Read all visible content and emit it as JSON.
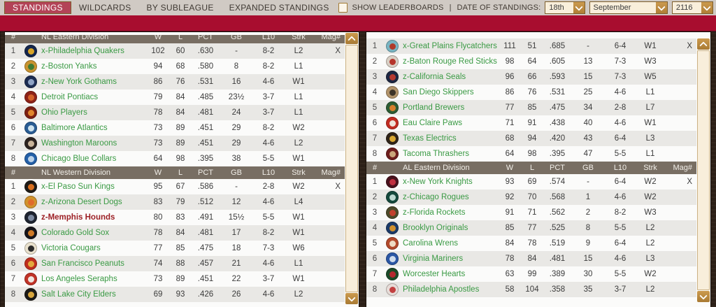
{
  "tabbar": {
    "tabs": [
      {
        "label": "STANDINGS",
        "selected": true
      },
      {
        "label": "WILDCARDS",
        "selected": false
      },
      {
        "label": "BY SUBLEAGUE",
        "selected": false
      },
      {
        "label": "EXPANDED STANDINGS",
        "selected": false
      }
    ]
  },
  "controls": {
    "show_leaderboards_label": "SHOW LEADERBOARDS",
    "checkbox_checked": false,
    "separator": "|",
    "date_label": "DATE OF STANDINGS:",
    "date_selects": [
      {
        "value": "18th"
      },
      {
        "value": "September"
      },
      {
        "value": "2116"
      }
    ]
  },
  "colors": {
    "accent_ribbon": "#a80d2f",
    "tab_selected": "#b34357",
    "division_header_bg": "#786e63",
    "team_name_green": "#3a9a44",
    "user_team_red": "#9c1f24",
    "scroll_button_orange": "#b07f36"
  },
  "table_headers": {
    "rank": "#",
    "w": "W",
    "l": "L",
    "pct": "PCT",
    "gb": "GB",
    "l10": "L10",
    "strk": "Strk",
    "mag": "Mag#"
  },
  "panels": [
    {
      "divisions": [
        {
          "name": "NL Eastern Division",
          "header_visible": true,
          "header_clipped": true,
          "teams": [
            {
              "rank": "1",
              "name": "x-Philadelphia Quakers",
              "w": "102",
              "l": "60",
              "pct": ".630",
              "gb": "-",
              "l10": "8-2",
              "strk": "L2",
              "mag": "X",
              "logo": [
                "#14264d",
                "#d9a527"
              ]
            },
            {
              "rank": "2",
              "name": "z-Boston Yanks",
              "w": "94",
              "l": "68",
              "pct": ".580",
              "gb": "8",
              "l10": "8-2",
              "strk": "L1",
              "mag": "",
              "logo": [
                "#c9932f",
                "#3f7a33"
              ]
            },
            {
              "rank": "3",
              "name": "z-New York Gothams",
              "w": "86",
              "l": "76",
              "pct": ".531",
              "gb": "16",
              "l10": "4-6",
              "strk": "W1",
              "mag": "",
              "logo": [
                "#1c2c52",
                "#8fa3c4"
              ]
            },
            {
              "rank": "4",
              "name": "Detroit Pontiacs",
              "w": "79",
              "l": "84",
              "pct": ".485",
              "gb": "23½",
              "l10": "3-7",
              "strk": "L1",
              "mag": "",
              "logo": [
                "#8e2318",
                "#d4622a"
              ]
            },
            {
              "rank": "5",
              "name": "Ohio Players",
              "w": "78",
              "l": "84",
              "pct": ".481",
              "gb": "24",
              "l10": "3-7",
              "strk": "L1",
              "mag": "",
              "logo": [
                "#7c1f12",
                "#e0862c"
              ]
            },
            {
              "rank": "6",
              "name": "Baltimore Atlantics",
              "w": "73",
              "l": "89",
              "pct": ".451",
              "gb": "29",
              "l10": "8-2",
              "strk": "W2",
              "mag": "",
              "logo": [
                "#2a5d94",
                "#cfe3ee"
              ]
            },
            {
              "rank": "7",
              "name": "Washington Maroons",
              "w": "73",
              "l": "89",
              "pct": ".451",
              "gb": "29",
              "l10": "4-6",
              "strk": "L2",
              "mag": "",
              "logo": [
                "#2c2320",
                "#c9b49a"
              ]
            },
            {
              "rank": "8",
              "name": "Chicago Blue Collars",
              "w": "64",
              "l": "98",
              "pct": ".395",
              "gb": "38",
              "l10": "5-5",
              "strk": "W1",
              "mag": "",
              "logo": [
                "#2460a8",
                "#bcd2e8"
              ]
            }
          ]
        },
        {
          "name": "NL Western Division",
          "header_visible": true,
          "header_clipped": false,
          "teams": [
            {
              "rank": "1",
              "name": "x-El Paso Sun Kings",
              "w": "95",
              "l": "67",
              "pct": ".586",
              "gb": "-",
              "l10": "2-8",
              "strk": "W2",
              "mag": "X",
              "logo": [
                "#1f1b16",
                "#d96f1f"
              ]
            },
            {
              "rank": "2",
              "name": "z-Arizona Desert Dogs",
              "w": "83",
              "l": "79",
              "pct": ".512",
              "gb": "12",
              "l10": "4-6",
              "strk": "L4",
              "mag": "",
              "logo": [
                "#d1922c",
                "#e06a2a"
              ]
            },
            {
              "rank": "3",
              "name": "z-Memphis Hounds",
              "w": "80",
              "l": "83",
              "pct": ".491",
              "gb": "15½",
              "l10": "5-5",
              "strk": "W1",
              "mag": "",
              "logo": [
                "#1e2430",
                "#7d8aa0"
              ],
              "user_team": true
            },
            {
              "rank": "4",
              "name": "Colorado Gold Sox",
              "w": "78",
              "l": "84",
              "pct": ".481",
              "gb": "17",
              "l10": "8-2",
              "strk": "W1",
              "mag": "",
              "logo": [
                "#17151a",
                "#cf7a26"
              ]
            },
            {
              "rank": "5",
              "name": "Victoria Cougars",
              "w": "77",
              "l": "85",
              "pct": ".475",
              "gb": "18",
              "l10": "7-3",
              "strk": "W6",
              "mag": "",
              "logo": [
                "#e9e1cd",
                "#2b2b2b"
              ]
            },
            {
              "rank": "6",
              "name": "San Francisco Peanuts",
              "w": "74",
              "l": "88",
              "pct": ".457",
              "gb": "21",
              "l10": "4-6",
              "strk": "L1",
              "mag": "",
              "logo": [
                "#bf2d1d",
                "#e3a93c"
              ]
            },
            {
              "rank": "7",
              "name": "Los Angeles Seraphs",
              "w": "73",
              "l": "89",
              "pct": ".451",
              "gb": "22",
              "l10": "3-7",
              "strk": "W1",
              "mag": "",
              "logo": [
                "#c23428",
                "#efe6e0"
              ]
            },
            {
              "rank": "8",
              "name": "Salt Lake City Elders",
              "w": "69",
              "l": "93",
              "pct": ".426",
              "gb": "26",
              "l10": "4-6",
              "strk": "L2",
              "mag": "",
              "logo": [
                "#1c1a17",
                "#d8a63c"
              ]
            }
          ]
        }
      ]
    },
    {
      "divisions": [
        {
          "name": "",
          "header_visible": false,
          "header_clipped": false,
          "teams": [
            {
              "rank": "1",
              "name": "x-Great Plains Flycatchers",
              "w": "111",
              "l": "51",
              "pct": ".685",
              "gb": "-",
              "l10": "6-4",
              "strk": "W1",
              "mag": "X",
              "logo": [
                "#79b4c2",
                "#b03a2a"
              ]
            },
            {
              "rank": "2",
              "name": "z-Baton Rouge Red Sticks",
              "w": "98",
              "l": "64",
              "pct": ".605",
              "gb": "13",
              "l10": "7-3",
              "strk": "W3",
              "mag": "",
              "logo": [
                "#d8cfc4",
                "#b5342a"
              ]
            },
            {
              "rank": "3",
              "name": "z-California Seals",
              "w": "96",
              "l": "66",
              "pct": ".593",
              "gb": "15",
              "l10": "7-3",
              "strk": "W5",
              "mag": "",
              "logo": [
                "#1d2742",
                "#b5382f"
              ]
            },
            {
              "rank": "4",
              "name": "San Diego Skippers",
              "w": "86",
              "l": "76",
              "pct": ".531",
              "gb": "25",
              "l10": "4-6",
              "strk": "L1",
              "mag": "",
              "logo": [
                "#b1936a",
                "#3c3327"
              ]
            },
            {
              "rank": "5",
              "name": "Portland Brewers",
              "w": "77",
              "l": "85",
              "pct": ".475",
              "gb": "34",
              "l10": "2-8",
              "strk": "L7",
              "mag": "",
              "logo": [
                "#2c5c33",
                "#d77f2c"
              ]
            },
            {
              "rank": "6",
              "name": "Eau Claire Paws",
              "w": "71",
              "l": "91",
              "pct": ".438",
              "gb": "40",
              "l10": "4-6",
              "strk": "W1",
              "mag": "",
              "logo": [
                "#c22d22",
                "#efe4da"
              ]
            },
            {
              "rank": "7",
              "name": "Texas Electrics",
              "w": "68",
              "l": "94",
              "pct": ".420",
              "gb": "43",
              "l10": "6-4",
              "strk": "L3",
              "mag": "",
              "logo": [
                "#2f2418",
                "#d9a832"
              ]
            },
            {
              "rank": "8",
              "name": "Tacoma Thrashers",
              "w": "64",
              "l": "98",
              "pct": ".395",
              "gb": "47",
              "l10": "5-5",
              "strk": "L1",
              "mag": "",
              "logo": [
                "#6e1d1c",
                "#caa57a"
              ]
            }
          ]
        },
        {
          "name": "AL Eastern Division",
          "header_visible": true,
          "header_clipped": false,
          "teams": [
            {
              "rank": "1",
              "name": "x-New York Knights",
              "w": "93",
              "l": "69",
              "pct": ".574",
              "gb": "-",
              "l10": "6-4",
              "strk": "W2",
              "mag": "X",
              "logo": [
                "#49121d",
                "#c03040"
              ]
            },
            {
              "rank": "2",
              "name": "z-Chicago Rogues",
              "w": "92",
              "l": "70",
              "pct": ".568",
              "gb": "1",
              "l10": "4-6",
              "strk": "W2",
              "mag": "",
              "logo": [
                "#14493c",
                "#bcd8d0"
              ]
            },
            {
              "rank": "3",
              "name": "z-Florida Rockets",
              "w": "91",
              "l": "71",
              "pct": ".562",
              "gb": "2",
              "l10": "8-2",
              "strk": "W3",
              "mag": "",
              "logo": [
                "#4d4a2a",
                "#c2402e"
              ]
            },
            {
              "rank": "4",
              "name": "Brooklyn Originals",
              "w": "85",
              "l": "77",
              "pct": ".525",
              "gb": "8",
              "l10": "5-5",
              "strk": "L2",
              "mag": "",
              "logo": [
                "#1b3a68",
                "#d0902e"
              ]
            },
            {
              "rank": "5",
              "name": "Carolina Wrens",
              "w": "84",
              "l": "78",
              "pct": ".519",
              "gb": "9",
              "l10": "6-4",
              "strk": "L2",
              "mag": "",
              "logo": [
                "#b34a2c",
                "#efdcc4"
              ]
            },
            {
              "rank": "6",
              "name": "Virginia Mariners",
              "w": "78",
              "l": "84",
              "pct": ".481",
              "gb": "15",
              "l10": "4-6",
              "strk": "L3",
              "mag": "",
              "logo": [
                "#2b57a5",
                "#cfdcec"
              ]
            },
            {
              "rank": "7",
              "name": "Worcester Hearts",
              "w": "63",
              "l": "99",
              "pct": ".389",
              "gb": "30",
              "l10": "5-5",
              "strk": "W2",
              "mag": "",
              "logo": [
                "#1c4a28",
                "#b5272f"
              ]
            },
            {
              "rank": "8",
              "name": "Philadelphia Apostles",
              "w": "58",
              "l": "104",
              "pct": ".358",
              "gb": "35",
              "l10": "3-7",
              "strk": "L2",
              "mag": "",
              "logo": [
                "#e7dcd8",
                "#c24040"
              ]
            }
          ]
        }
      ]
    }
  ]
}
